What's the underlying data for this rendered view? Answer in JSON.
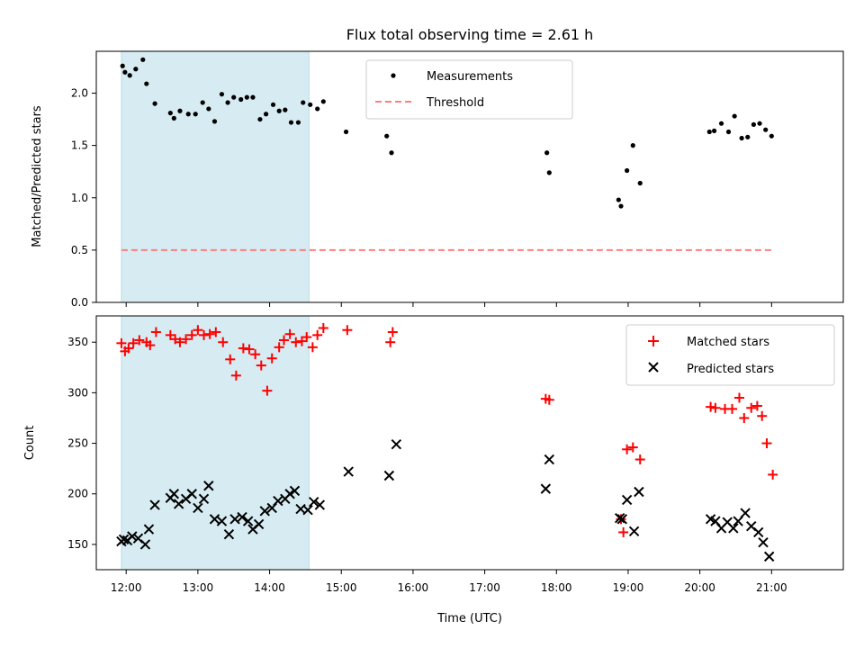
{
  "chart_data": [
    {
      "type": "scatter",
      "title": "Flux total observing time = 2.61 h",
      "xlabel": "",
      "ylabel": "Matched/Predicted stars",
      "xlim": [
        "11:35",
        "22:00"
      ],
      "ylim": [
        0,
        2.4
      ],
      "xticks": [
        "12:00",
        "13:00",
        "14:00",
        "15:00",
        "16:00",
        "17:00",
        "18:00",
        "19:00",
        "20:00",
        "21:00"
      ],
      "yticks": [
        "0.0",
        "0.5",
        "1.0",
        "1.5",
        "2.0"
      ],
      "shaded_span": [
        "11:56",
        "14:33"
      ],
      "shaded_color": "#add8e6",
      "grid": false,
      "legend": {
        "placement": "upper-center",
        "entries": [
          "Measurements",
          "Threshold"
        ]
      },
      "series": [
        {
          "name": "Measurements",
          "marker": "dot",
          "color": "#000000",
          "points": [
            [
              "11:57",
              2.26
            ],
            [
              "11:59",
              2.2
            ],
            [
              "12:03",
              2.17
            ],
            [
              "12:08",
              2.23
            ],
            [
              "12:14",
              2.32
            ],
            [
              "12:17",
              2.09
            ],
            [
              "12:24",
              1.9
            ],
            [
              "12:37",
              1.81
            ],
            [
              "12:40",
              1.76
            ],
            [
              "12:45",
              1.83
            ],
            [
              "12:52",
              1.8
            ],
            [
              "12:58",
              1.8
            ],
            [
              "13:04",
              1.91
            ],
            [
              "13:09",
              1.85
            ],
            [
              "13:14",
              1.73
            ],
            [
              "13:20",
              1.99
            ],
            [
              "13:25",
              1.91
            ],
            [
              "13:30",
              1.96
            ],
            [
              "13:36",
              1.94
            ],
            [
              "13:41",
              1.96
            ],
            [
              "13:46",
              1.96
            ],
            [
              "13:52",
              1.75
            ],
            [
              "13:57",
              1.8
            ],
            [
              "14:03",
              1.89
            ],
            [
              "14:08",
              1.83
            ],
            [
              "14:13",
              1.84
            ],
            [
              "14:18",
              1.72
            ],
            [
              "14:24",
              1.72
            ],
            [
              "14:28",
              1.91
            ],
            [
              "14:34",
              1.89
            ],
            [
              "14:40",
              1.85
            ],
            [
              "14:45",
              1.92
            ],
            [
              "15:04",
              1.63
            ],
            [
              "15:38",
              1.59
            ],
            [
              "15:42",
              1.43
            ],
            [
              "17:52",
              1.43
            ],
            [
              "17:54",
              1.24
            ],
            [
              "18:52",
              0.98
            ],
            [
              "18:54",
              0.92
            ],
            [
              "18:59",
              1.26
            ],
            [
              "19:04",
              1.5
            ],
            [
              "19:10",
              1.14
            ],
            [
              "20:08",
              1.63
            ],
            [
              "20:12",
              1.64
            ],
            [
              "20:18",
              1.71
            ],
            [
              "20:24",
              1.63
            ],
            [
              "20:29",
              1.78
            ],
            [
              "20:35",
              1.57
            ],
            [
              "20:40",
              1.58
            ],
            [
              "20:45",
              1.7
            ],
            [
              "20:50",
              1.71
            ],
            [
              "20:55",
              1.65
            ],
            [
              "21:00",
              1.59
            ]
          ]
        },
        {
          "name": "Threshold",
          "style": "dashed",
          "color": "#ff7f7f",
          "points": [
            [
              "11:56",
              0.5
            ],
            [
              "21:00",
              0.5
            ]
          ]
        }
      ]
    },
    {
      "type": "scatter",
      "title": "",
      "xlabel": "Time (UTC)",
      "ylabel": "Count",
      "xlim": [
        "11:35",
        "22:00"
      ],
      "ylim": [
        125,
        376
      ],
      "xticks": [
        "12:00",
        "13:00",
        "14:00",
        "15:00",
        "16:00",
        "17:00",
        "18:00",
        "19:00",
        "20:00",
        "21:00"
      ],
      "yticks": [
        "150",
        "200",
        "250",
        "300",
        "350"
      ],
      "shaded_span": [
        "11:56",
        "14:33"
      ],
      "shaded_color": "#add8e6",
      "grid": false,
      "legend": {
        "placement": "upper-right",
        "entries": [
          "Matched stars",
          "Predicted stars"
        ]
      },
      "series": [
        {
          "name": "Matched stars",
          "marker": "plus",
          "color": "#ff0000",
          "points": [
            [
              "11:56",
              349
            ],
            [
              "11:59",
              341
            ],
            [
              "12:02",
              344
            ],
            [
              "12:06",
              349
            ],
            [
              "12:11",
              352
            ],
            [
              "12:17",
              350
            ],
            [
              "12:20",
              347
            ],
            [
              "12:25",
              360
            ],
            [
              "12:37",
              357
            ],
            [
              "12:41",
              353
            ],
            [
              "12:45",
              350
            ],
            [
              "12:50",
              353
            ],
            [
              "12:55",
              357
            ],
            [
              "13:00",
              362
            ],
            [
              "13:05",
              357
            ],
            [
              "13:10",
              358
            ],
            [
              "13:15",
              360
            ],
            [
              "13:21",
              350
            ],
            [
              "13:27",
              333
            ],
            [
              "13:32",
              317
            ],
            [
              "13:38",
              344
            ],
            [
              "13:43",
              343
            ],
            [
              "13:48",
              338
            ],
            [
              "13:53",
              327
            ],
            [
              "13:58",
              302
            ],
            [
              "14:02",
              334
            ],
            [
              "14:08",
              345
            ],
            [
              "14:12",
              352
            ],
            [
              "14:17",
              358
            ],
            [
              "14:22",
              350
            ],
            [
              "14:27",
              351
            ],
            [
              "14:31",
              355
            ],
            [
              "14:36",
              345
            ],
            [
              "14:40",
              357
            ],
            [
              "14:45",
              364
            ],
            [
              "15:05",
              362
            ],
            [
              "15:41",
              350
            ],
            [
              "15:43",
              360
            ],
            [
              "17:51",
              294
            ],
            [
              "17:54",
              293
            ],
            [
              "18:54",
              175
            ],
            [
              "18:56",
              162
            ],
            [
              "18:59",
              244
            ],
            [
              "19:04",
              246
            ],
            [
              "19:10",
              234
            ],
            [
              "20:09",
              286
            ],
            [
              "20:13",
              285
            ],
            [
              "20:21",
              284
            ],
            [
              "20:27",
              284
            ],
            [
              "20:33",
              295
            ],
            [
              "20:37",
              275
            ],
            [
              "20:43",
              285
            ],
            [
              "20:48",
              287
            ],
            [
              "20:52",
              277
            ],
            [
              "20:56",
              250
            ],
            [
              "21:01",
              219
            ]
          ]
        },
        {
          "name": "Predicted stars",
          "marker": "x",
          "color": "#000000",
          "points": [
            [
              "11:56",
              153
            ],
            [
              "11:58",
              155
            ],
            [
              "12:01",
              154
            ],
            [
              "12:05",
              158
            ],
            [
              "12:10",
              156
            ],
            [
              "12:16",
              150
            ],
            [
              "12:19",
              165
            ],
            [
              "12:24",
              189
            ],
            [
              "12:37",
              196
            ],
            [
              "12:40",
              200
            ],
            [
              "12:44",
              190
            ],
            [
              "12:50",
              195
            ],
            [
              "12:55",
              200
            ],
            [
              "13:00",
              186
            ],
            [
              "13:05",
              195
            ],
            [
              "13:09",
              208
            ],
            [
              "13:14",
              175
            ],
            [
              "13:20",
              173
            ],
            [
              "13:26",
              160
            ],
            [
              "13:31",
              175
            ],
            [
              "13:37",
              177
            ],
            [
              "13:42",
              173
            ],
            [
              "13:46",
              165
            ],
            [
              "13:51",
              170
            ],
            [
              "13:56",
              183
            ],
            [
              "14:02",
              186
            ],
            [
              "14:07",
              193
            ],
            [
              "14:13",
              195
            ],
            [
              "14:17",
              200
            ],
            [
              "14:21",
              203
            ],
            [
              "14:26",
              185
            ],
            [
              "14:32",
              184
            ],
            [
              "14:37",
              192
            ],
            [
              "14:42",
              189
            ],
            [
              "15:06",
              222
            ],
            [
              "15:40",
              218
            ],
            [
              "15:46",
              249
            ],
            [
              "17:51",
              205
            ],
            [
              "17:54",
              234
            ],
            [
              "18:53",
              176
            ],
            [
              "18:55",
              175
            ],
            [
              "18:59",
              194
            ],
            [
              "19:05",
              163
            ],
            [
              "19:09",
              202
            ],
            [
              "20:09",
              175
            ],
            [
              "20:13",
              173
            ],
            [
              "20:18",
              166
            ],
            [
              "20:23",
              172
            ],
            [
              "20:28",
              166
            ],
            [
              "20:32",
              173
            ],
            [
              "20:38",
              181
            ],
            [
              "20:43",
              168
            ],
            [
              "20:49",
              162
            ],
            [
              "20:53",
              152
            ],
            [
              "20:58",
              138
            ]
          ]
        }
      ]
    }
  ]
}
